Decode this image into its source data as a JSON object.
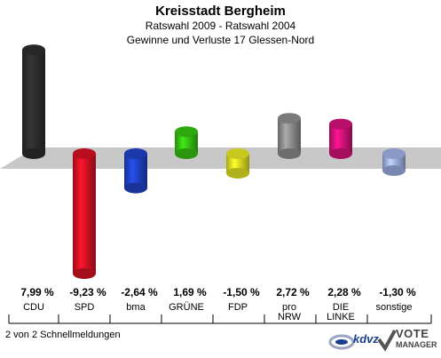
{
  "header": {
    "title": "Kreisstadt Bergheim",
    "subtitle1": "Ratswahl 2009 - Ratswahl 2004",
    "subtitle2": "Gewinne und Verluste 17 Glessen-Nord"
  },
  "footer": {
    "left_text": "2 von 2 Schnellmeldungen",
    "logo_kdvz": "kdvz",
    "logo_vote": "VOTE",
    "logo_manager": "MANAGER"
  },
  "chart_data": {
    "type": "bar",
    "categories": [
      "CDU",
      "SPD",
      "bma",
      "GRÜNE",
      "FDP",
      "pro NRW",
      "DIE LINKE",
      "sonstige"
    ],
    "category_lines": [
      [
        "CDU"
      ],
      [
        "SPD"
      ],
      [
        "bma"
      ],
      [
        "GRÜNE"
      ],
      [
        "FDP"
      ],
      [
        "pro",
        "NRW"
      ],
      [
        "DIE",
        "LINKE"
      ],
      [
        "sonstige"
      ]
    ],
    "values": [
      7.99,
      -9.23,
      -2.64,
      1.69,
      -1.5,
      2.72,
      2.28,
      -1.3
    ],
    "value_labels": [
      "7,99 %",
      "-9,23 %",
      "-2,64 %",
      "1,69 %",
      "-1,50 %",
      "2,72 %",
      "2,28 %",
      "-1,30 %"
    ],
    "colors": [
      "#2b2b2b",
      "#cc1122",
      "#1f3fbf",
      "#33bb11",
      "#dddd22",
      "#888888",
      "#cc1177",
      "#99aadd"
    ],
    "ylim": [
      -9.23,
      7.99
    ]
  }
}
